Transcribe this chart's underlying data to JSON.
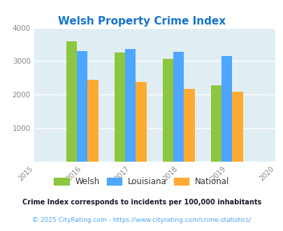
{
  "title": "Welsh Property Crime Index",
  "years": [
    2016,
    2017,
    2018,
    2019
  ],
  "welsh": [
    3600,
    3250,
    3075,
    2275
  ],
  "louisiana": [
    3300,
    3375,
    3275,
    3150
  ],
  "national": [
    2450,
    2375,
    2175,
    2100
  ],
  "welsh_color": "#8dc63f",
  "louisiana_color": "#4da6ff",
  "national_color": "#ffaa33",
  "bg_color": "#e0eef4",
  "xlim": [
    2015,
    2020
  ],
  "ylim": [
    0,
    4000
  ],
  "yticks": [
    0,
    1000,
    2000,
    3000,
    4000
  ],
  "xticks": [
    2015,
    2016,
    2017,
    2018,
    2019,
    2020
  ],
  "legend_labels": [
    "Welsh",
    "Louisiana",
    "National"
  ],
  "footnote1": "Crime Index corresponds to incidents per 100,000 inhabitants",
  "footnote2": "© 2025 CityRating.com - https://www.cityrating.com/crime-statistics/",
  "title_color": "#1874cd",
  "footnote1_color": "#1a1a2e",
  "footnote2_color": "#4da6ff",
  "bar_width": 0.22
}
